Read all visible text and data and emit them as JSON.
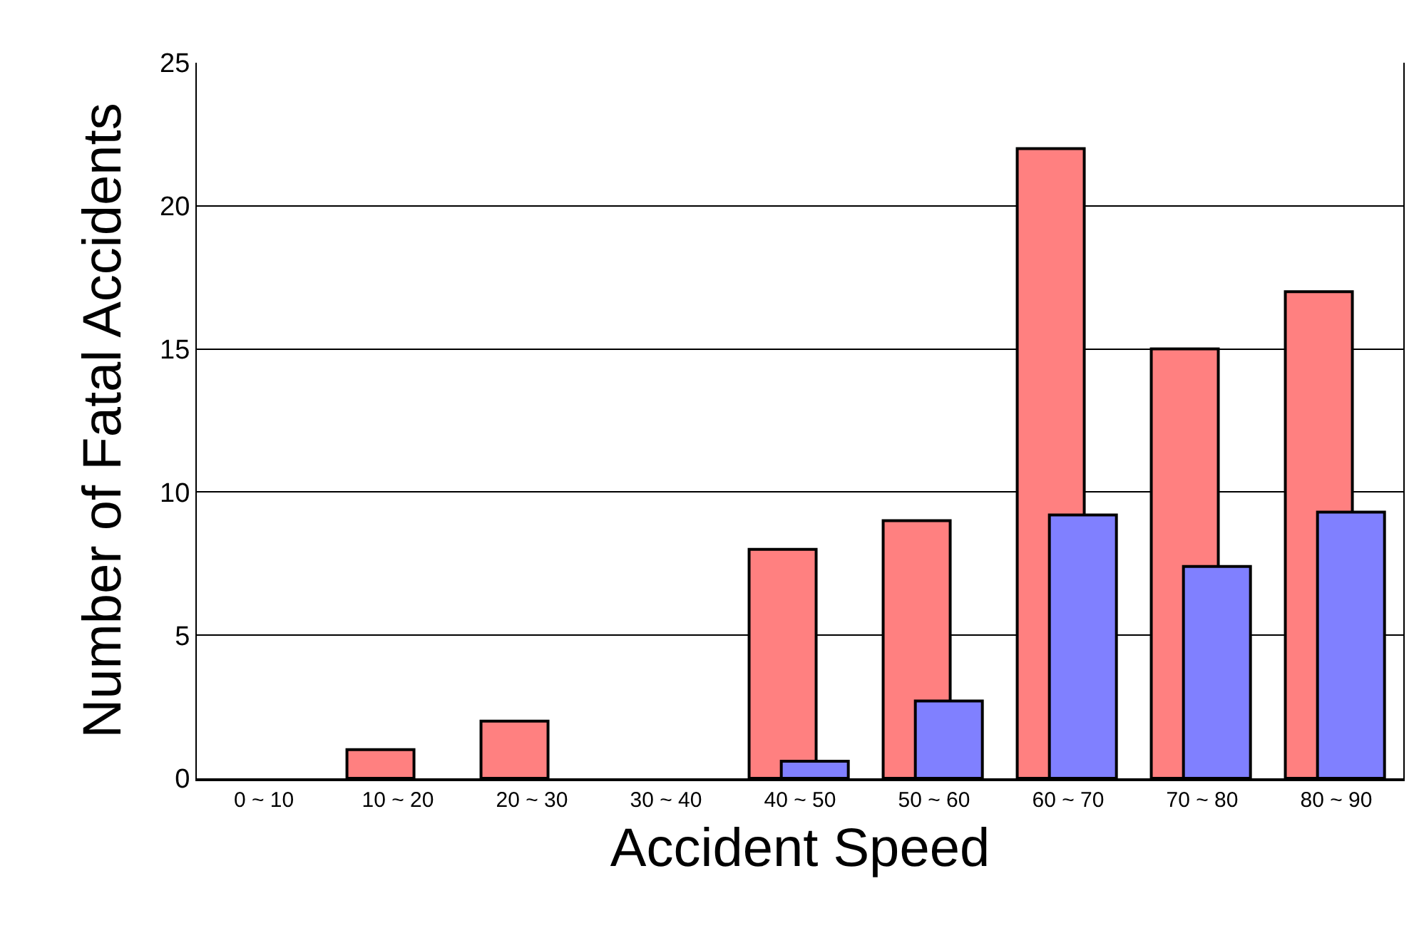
{
  "chart_data": {
    "type": "bar",
    "xlabel": "Accident Speed",
    "ylabel": "Number of Fatal Accidents",
    "categories": [
      "0 ~ 10",
      "10 ~ 20",
      "20 ~ 30",
      "30 ~ 40",
      "40 ~ 50",
      "50 ~ 60",
      "60 ~ 70",
      "70 ~ 80",
      "80 ~ 90"
    ],
    "series": [
      {
        "color": "#ff8080",
        "values": [
          0,
          1,
          2,
          0,
          8,
          9,
          22,
          15,
          17
        ]
      },
      {
        "color": "#8080ff",
        "values": [
          0,
          0,
          0,
          0,
          0.6,
          2.7,
          9.2,
          7.4,
          9.3
        ]
      }
    ],
    "ylim": [
      0,
      25
    ],
    "yticks": [
      0,
      5,
      10,
      15,
      20,
      25
    ],
    "grid": "y"
  }
}
